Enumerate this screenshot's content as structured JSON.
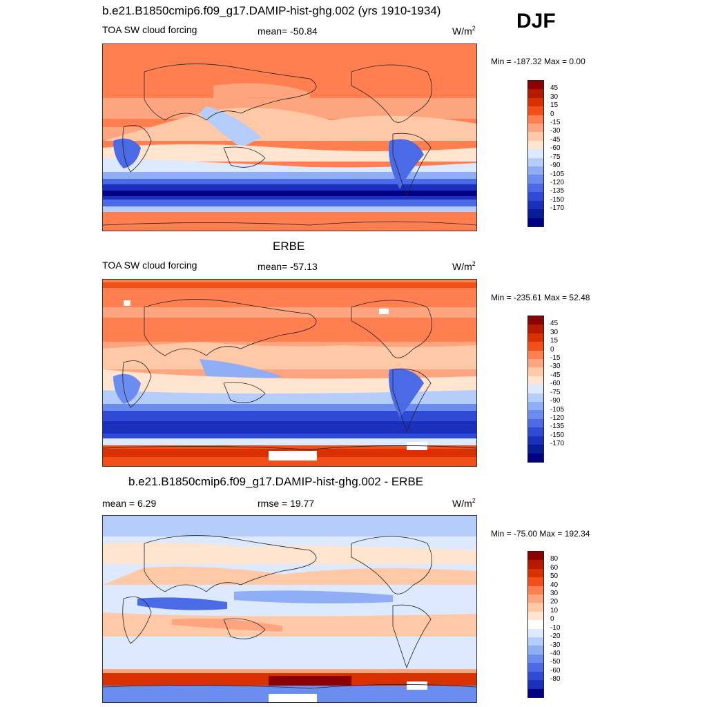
{
  "season": "DJF",
  "colors": {
    "cf_scale": [
      "#8b0000",
      "#b51a00",
      "#d93000",
      "#f25018",
      "#ff7f50",
      "#fda57f",
      "#ffc9a8",
      "#ffe4cf",
      "#dce9ff",
      "#b5cdfa",
      "#8faef5",
      "#6c8df0",
      "#4a6ae6",
      "#2f4bd6",
      "#1a30bc",
      "#081c9a",
      "#000087"
    ],
    "diff_scale": [
      "#8b0000",
      "#b51a00",
      "#d93000",
      "#f25018",
      "#ff7f50",
      "#fda57f",
      "#ffc9a8",
      "#ffe4cf",
      "#ffffff",
      "#dce9ff",
      "#b5cdfa",
      "#8faef5",
      "#6c8df0",
      "#4a6ae6",
      "#2f4bd6",
      "#1a30bc",
      "#000087"
    ]
  },
  "panels": [
    {
      "title": "b.e21.B1850cmip6.f09_g17.DAMIP-hist-ghg.002 (yrs 1910-1934)",
      "left": "TOA SW cloud forcing",
      "center": "mean= -50.84",
      "units": "W/m",
      "units_exp": "2",
      "minmax": "Min = -187.32 Max =   0.00",
      "cbar_labels": [
        "45",
        "30",
        "15",
        "0",
        "-15",
        "-30",
        "-45",
        "-60",
        "-75",
        "-90",
        "-105",
        "-120",
        "-135",
        "-150",
        "-170"
      ]
    },
    {
      "title": "ERBE",
      "left": "TOA SW cloud forcing",
      "center": "mean= -57.13",
      "units": "W/m",
      "units_exp": "2",
      "minmax": "Min = -235.61 Max =  52.48",
      "cbar_labels": [
        "45",
        "30",
        "15",
        "0",
        "-15",
        "-30",
        "-45",
        "-60",
        "-75",
        "-90",
        "-105",
        "-120",
        "-135",
        "-150",
        "-170"
      ]
    },
    {
      "title": "b.e21.B1850cmip6.f09_g17.DAMIP-hist-ghg.002 - ERBE",
      "left": "mean =   6.29",
      "center": "rmse =  19.77",
      "units": "W/m",
      "units_exp": "2",
      "minmax": "Min = -75.00 Max = 192.34",
      "cbar_labels": [
        "80",
        "60",
        "50",
        "40",
        "30",
        "20",
        "10",
        "0",
        "-10",
        "-20",
        "-30",
        "-40",
        "-50",
        "-60",
        "-80"
      ]
    }
  ]
}
